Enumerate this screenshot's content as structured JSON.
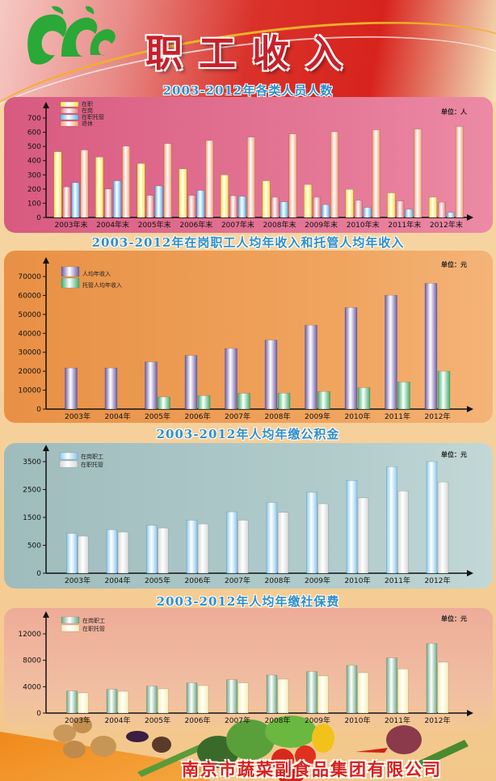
{
  "header": {
    "title": "职工收入"
  },
  "footer": {
    "company": "南京市蔬菜副食品集团有限公司"
  },
  "colors": {
    "accent_red": "#d8231d",
    "title_blue": "#2f8ec8",
    "logo_green": "#2aa838"
  },
  "chart_data": [
    {
      "type": "bar",
      "title": "2003-2012年各类人员人数",
      "unit": "单位：人",
      "categories": [
        "2003年末",
        "2004年末",
        "2005年末",
        "2006年末",
        "2007年末",
        "2008年末",
        "2009年末",
        "2010年末",
        "2011年末",
        "2012年末"
      ],
      "yticks": [
        "0",
        "100",
        "200",
        "300",
        "400",
        "500",
        "600",
        "700"
      ],
      "tickvals": [
        0,
        100,
        200,
        300,
        400,
        500,
        600,
        700
      ],
      "ylim": [
        0,
        700
      ],
      "series": [
        {
          "name": "在职",
          "color": "#f5e63a",
          "values": [
            463,
            425,
            380,
            342,
            300,
            258,
            232,
            198,
            173,
            143
          ]
        },
        {
          "name": "在岗",
          "color": "#e07a7a",
          "values": [
            215,
            200,
            155,
            155,
            153,
            142,
            142,
            120,
            115,
            107
          ]
        },
        {
          "name": "在职托管",
          "color": "#5ab8e8",
          "values": [
            245,
            258,
            222,
            190,
            148,
            110,
            90,
            70,
            57,
            35
          ]
        },
        {
          "name": "退休",
          "color": "#f0a070",
          "values": [
            475,
            502,
            520,
            542,
            565,
            588,
            603,
            617,
            622,
            640
          ]
        }
      ]
    },
    {
      "type": "bar",
      "title": "2003-2012年在岗职工人均年收入和托管人均年收入",
      "unit": "单位：元",
      "categories": [
        "2003年",
        "2004年",
        "2005年",
        "2006年",
        "2007年",
        "2008年",
        "2009年",
        "2010年",
        "2011年",
        "2012年"
      ],
      "yticks": [
        "0",
        "10000",
        "20000",
        "30000",
        "40000",
        "50000",
        "60000",
        "70000"
      ],
      "tickvals": [
        0,
        10000,
        20000,
        30000,
        40000,
        50000,
        60000,
        70000
      ],
      "ylim": [
        0,
        70000
      ],
      "series": [
        {
          "name": "人均年收入",
          "color": "#6a5aa8",
          "values": [
            21700,
            21700,
            24900,
            28300,
            32000,
            36400,
            44300,
            53600,
            60100,
            66400
          ]
        },
        {
          "name": "托管人均年收入",
          "color": "#3fae6e",
          "values": [
            null,
            null,
            6400,
            7100,
            8300,
            8400,
            9300,
            11300,
            14300,
            20000
          ]
        }
      ]
    },
    {
      "type": "bar",
      "title": "2003-2012年人均年缴公积金",
      "unit": "单位：元",
      "categories": [
        "2003年",
        "2004年",
        "2005年",
        "2006年",
        "2007年",
        "2008年",
        "2009年",
        "2010年",
        "2011年",
        "2012年"
      ],
      "yticks": [
        "0",
        "500",
        "1500",
        "2500",
        "3500"
      ],
      "tickvals": [
        0,
        500,
        1500,
        2500,
        3500
      ],
      "ylim": [
        0,
        3500
      ],
      "series": [
        {
          "name": "在岗职工",
          "color": "#8ccaf0",
          "values": [
            925,
            1060,
            1215,
            1400,
            1700,
            2035,
            2400,
            2820,
            3320,
            3515
          ]
        },
        {
          "name": "在职托管",
          "color": "#d8d8d8",
          "values": [
            830,
            975,
            1120,
            1265,
            1400,
            1680,
            1990,
            2200,
            2450,
            2770
          ]
        }
      ]
    },
    {
      "type": "bar",
      "title": "2003-2012年人均年缴社保费",
      "unit": "单位：元",
      "categories": [
        "2003年",
        "2004年",
        "2005年",
        "2006年",
        "2007年",
        "2008年",
        "2009年",
        "2010年",
        "2011年",
        "2012年"
      ],
      "yticks": [
        "0",
        "4000",
        "8000",
        "12000"
      ],
      "tickvals": [
        0,
        4000,
        8000,
        12000
      ],
      "ylim": [
        0,
        12000
      ],
      "series": [
        {
          "name": "在岗职工",
          "color": "#6aaa8a",
          "values": [
            3350,
            3590,
            4080,
            4570,
            5060,
            5750,
            6290,
            7220,
            8370,
            10530
          ]
        },
        {
          "name": "在职托管",
          "color": "#f4f0b0",
          "values": [
            3060,
            3300,
            3670,
            4160,
            4570,
            5140,
            5630,
            6120,
            6690,
            7710
          ]
        }
      ]
    }
  ]
}
